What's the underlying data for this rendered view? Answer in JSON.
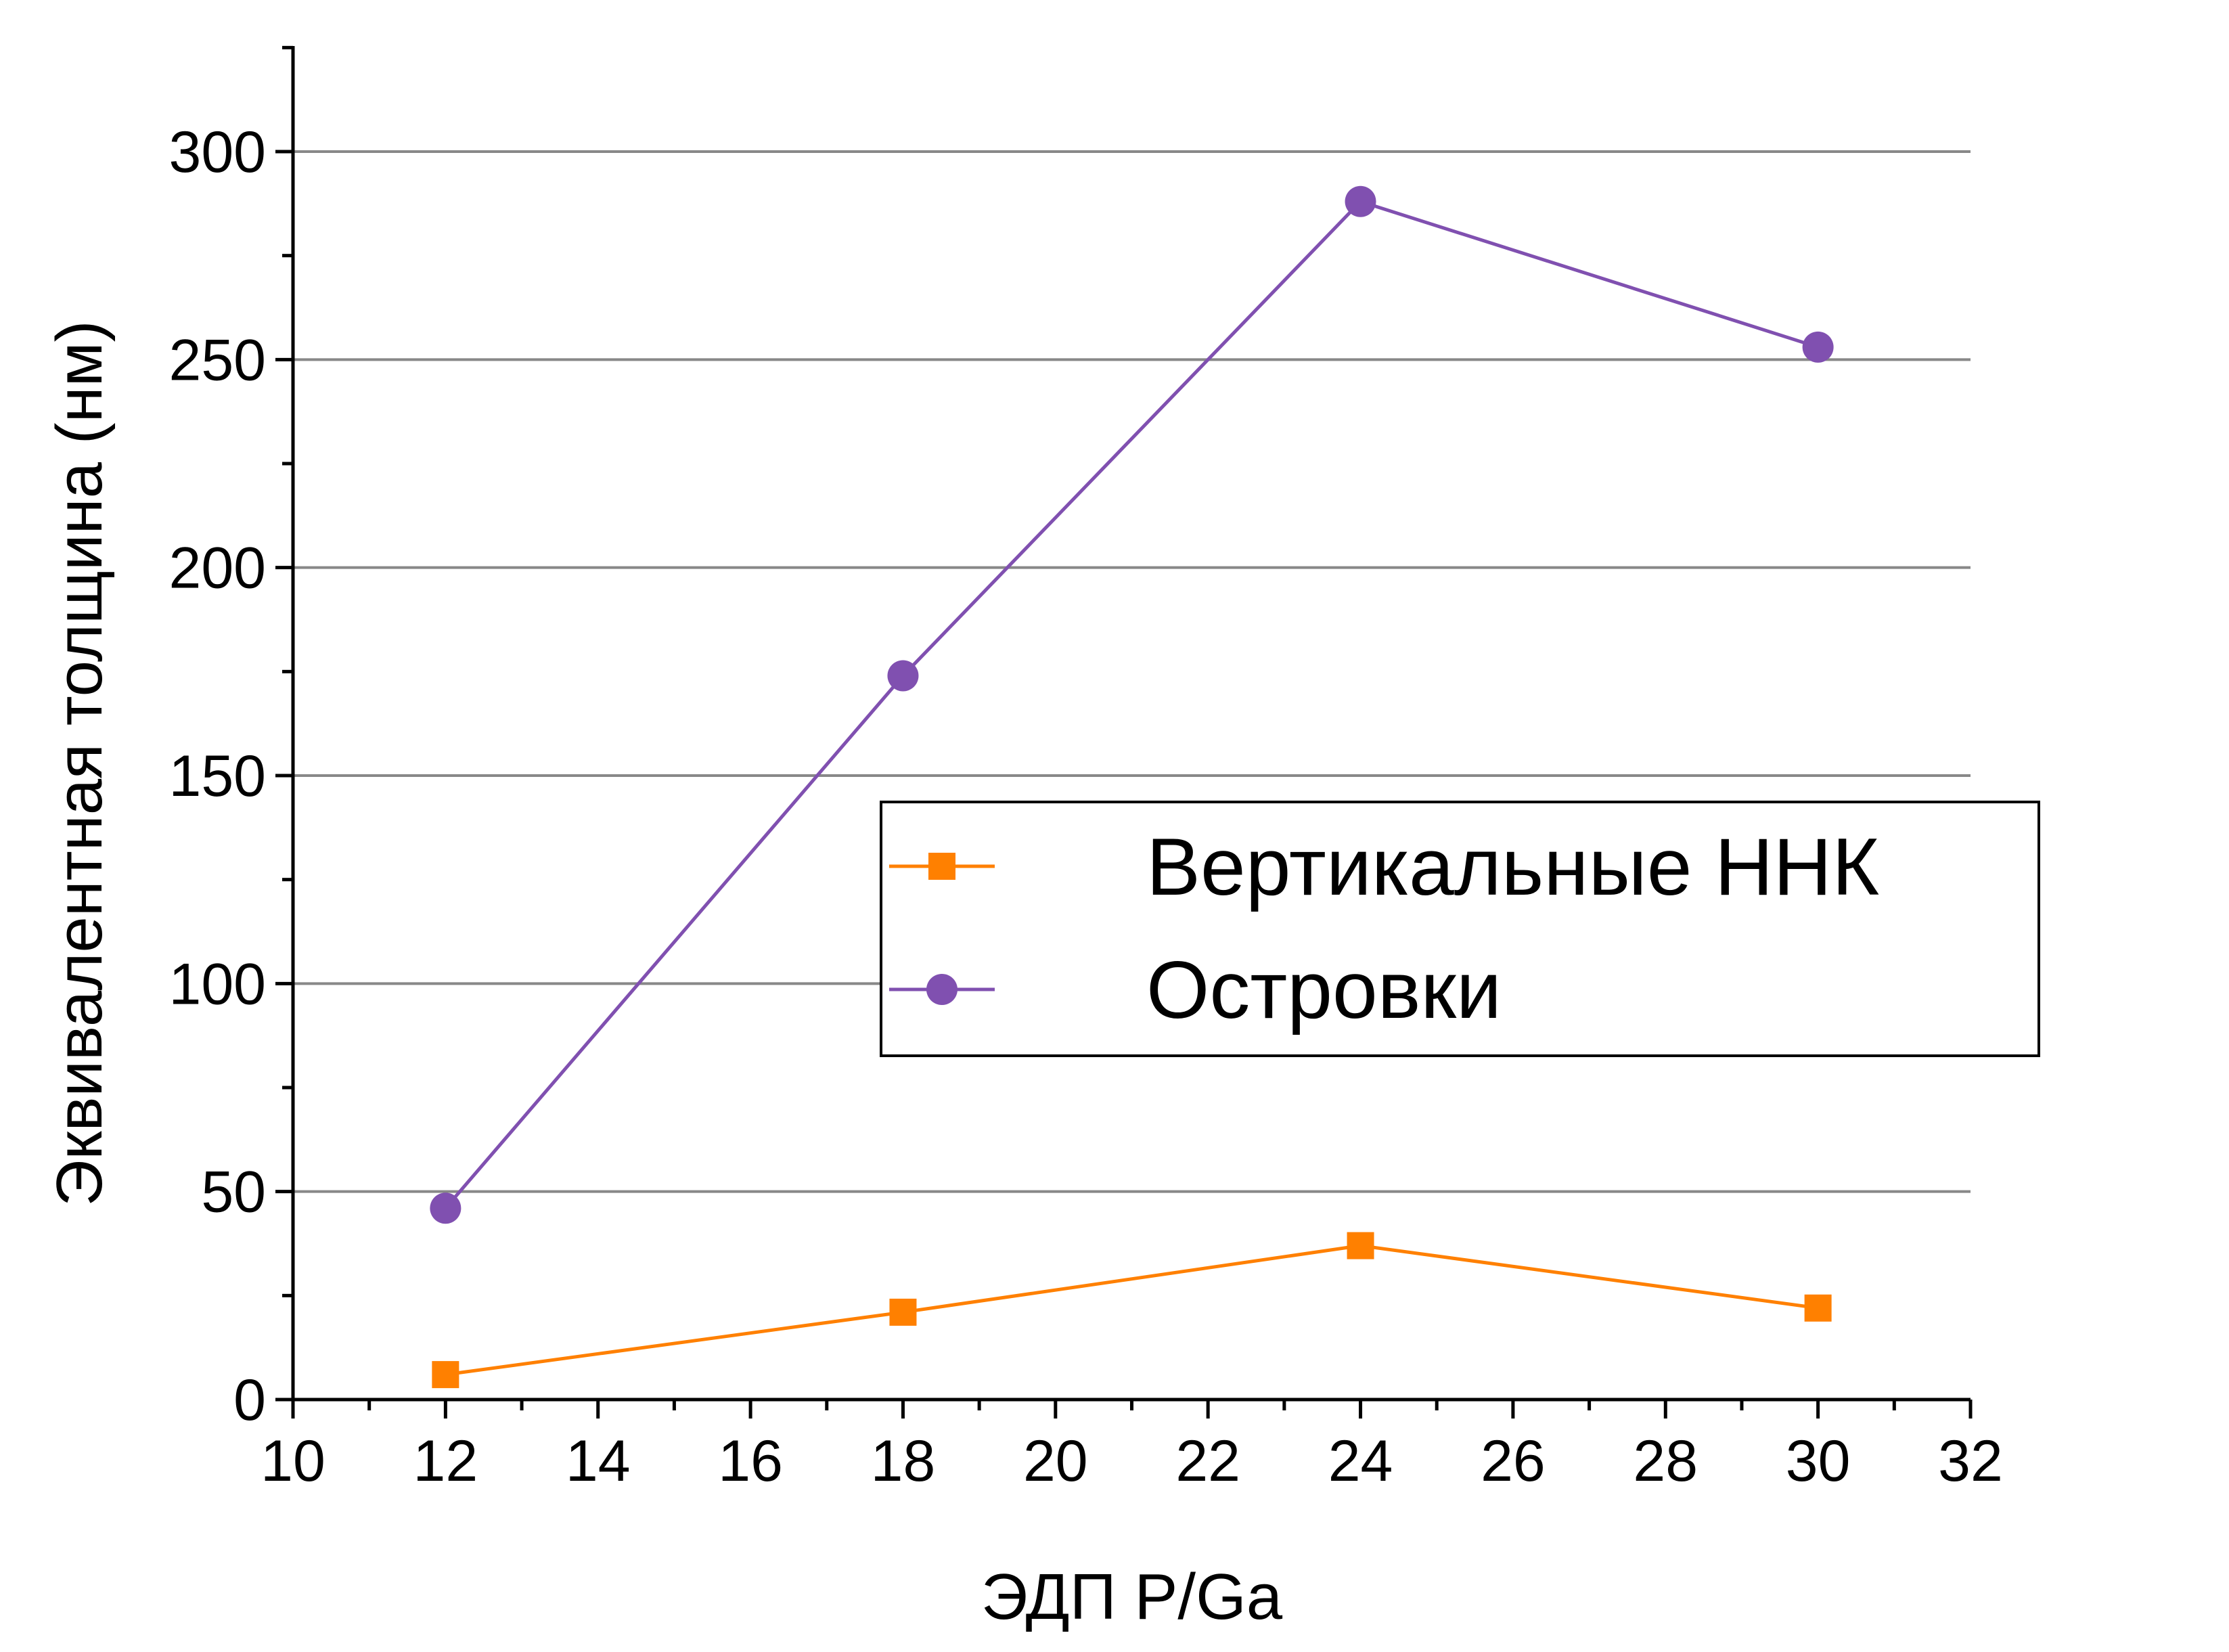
{
  "chart_data": {
    "type": "line",
    "xlabel": "ЭДП P/Ga",
    "ylabel": "Эквивалентная толщина (нм)",
    "xlim": [
      10,
      32
    ],
    "ylim": [
      0,
      325
    ],
    "x_ticks": [
      10,
      12,
      14,
      16,
      18,
      20,
      22,
      24,
      26,
      28,
      30,
      32
    ],
    "y_ticks": [
      0,
      50,
      100,
      150,
      200,
      250,
      300
    ],
    "grid": "horizontal",
    "legend_position": "center-right",
    "series": [
      {
        "name": "Вертикальные ННК",
        "marker": "square",
        "color": "#ff8000",
        "x": [
          12,
          18,
          24,
          30
        ],
        "y": [
          6,
          21,
          37,
          22
        ]
      },
      {
        "name": "Островки",
        "marker": "circle",
        "color": "#8050b0",
        "x": [
          12,
          18,
          24,
          30
        ],
        "y": [
          46,
          174,
          288,
          253
        ]
      }
    ]
  }
}
